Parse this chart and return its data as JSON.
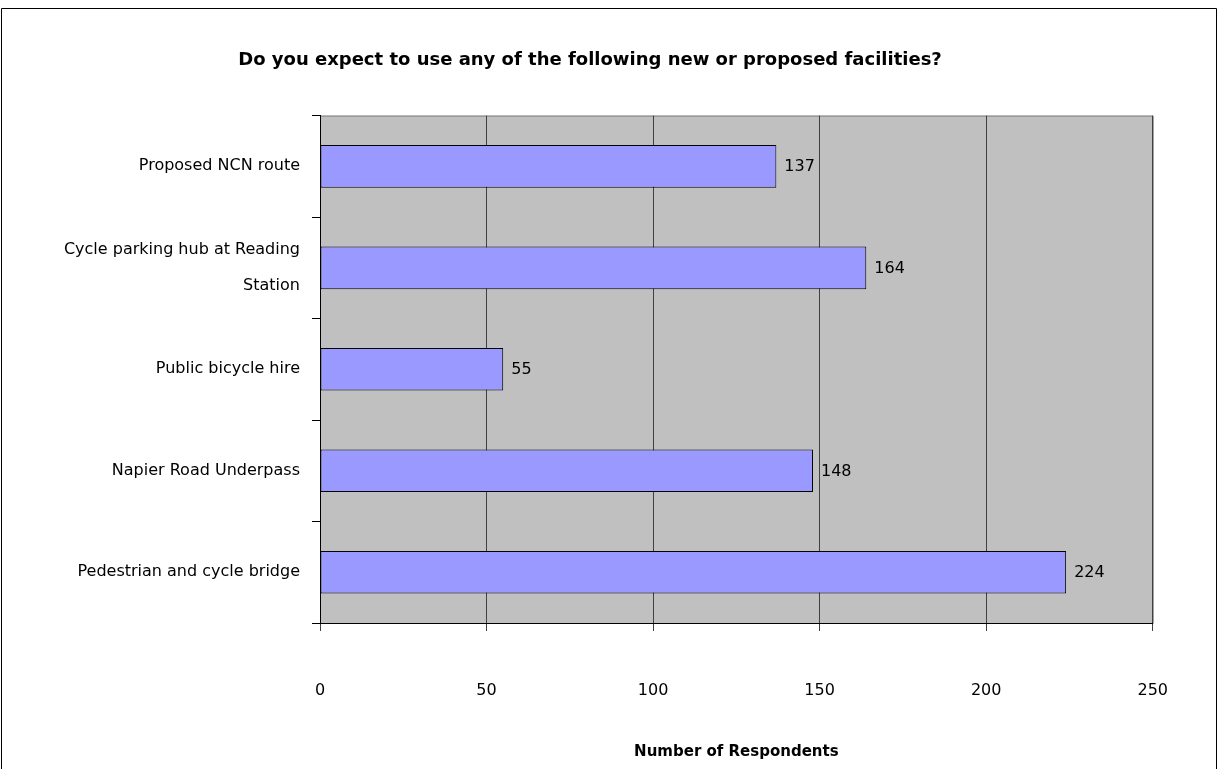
{
  "chart_data": {
    "type": "bar",
    "orientation": "horizontal",
    "title": "Do you expect to use any of the following new or proposed facilities?",
    "xlabel": "Number of Respondents",
    "categories": [
      "Proposed NCN route",
      "Cycle parking hub at Reading Station",
      "Public bicycle hire",
      "Napier Road Underpass",
      "Pedestrian and cycle bridge"
    ],
    "values": [
      137,
      164,
      55,
      148,
      224
    ],
    "color": "#9999ff",
    "xlim": [
      0,
      250
    ],
    "xticks": [
      0,
      50,
      100,
      150,
      200,
      250
    ],
    "grid": "x",
    "data_labels": true
  }
}
